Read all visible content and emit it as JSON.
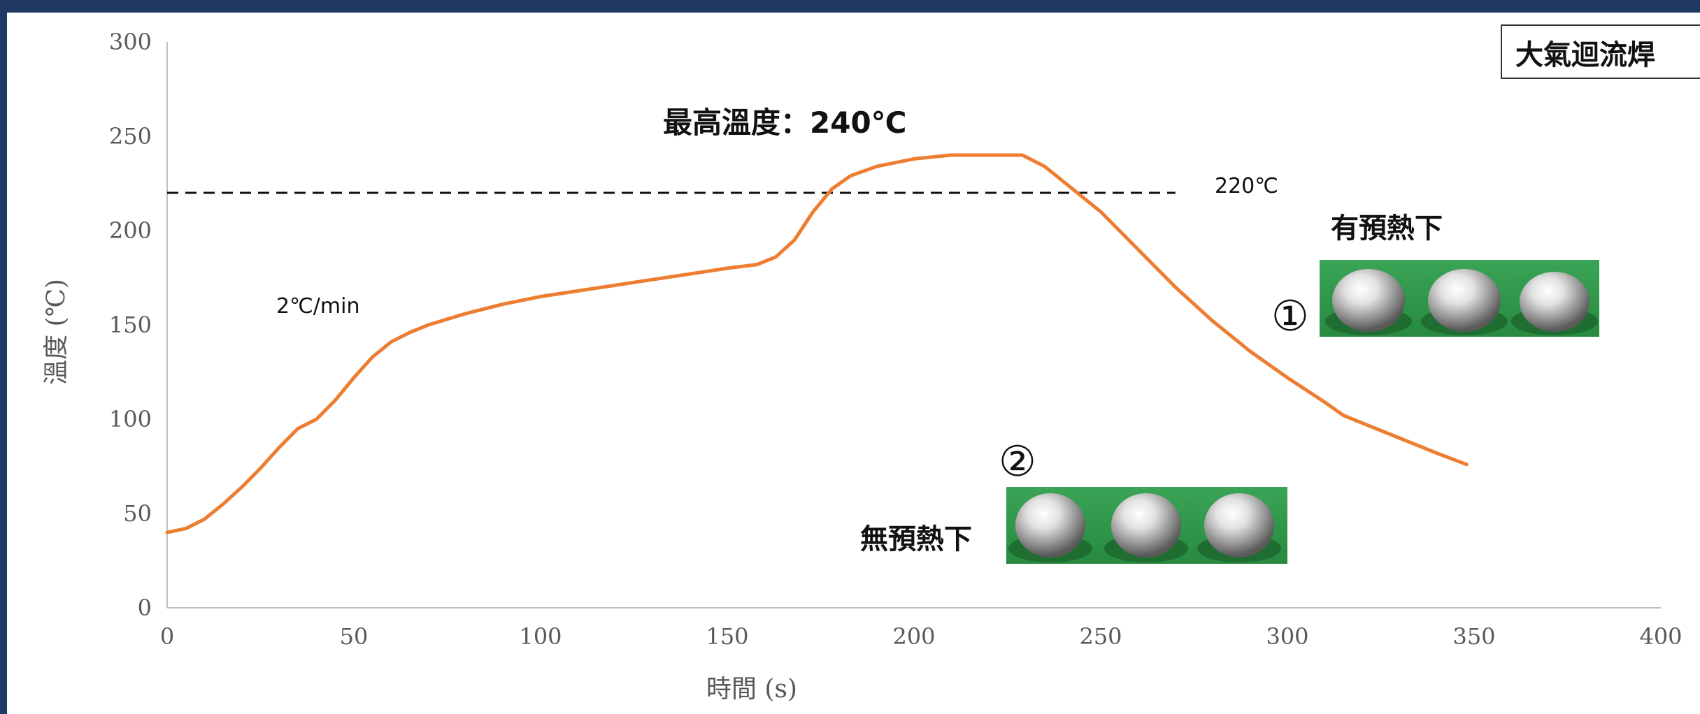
{
  "chart_data": {
    "type": "line",
    "title": "大氣迴流焊",
    "xlabel": "時間 (s)",
    "ylabel": "溫度 (℃)",
    "xlim": [
      0,
      400
    ],
    "ylim": [
      0,
      300
    ],
    "x_ticks": [
      0,
      50,
      100,
      150,
      200,
      250,
      300,
      350,
      400
    ],
    "y_ticks": [
      0,
      50,
      100,
      150,
      200,
      250,
      300
    ],
    "grid": false,
    "series": [
      {
        "color": "#ed7d31",
        "x": [
          0,
          5,
          10,
          15,
          20,
          25,
          30,
          35,
          40,
          45,
          50,
          55,
          60,
          65,
          70,
          75,
          80,
          90,
          100,
          110,
          120,
          130,
          140,
          150,
          158,
          163,
          168,
          173,
          178,
          183,
          190,
          200,
          210,
          220,
          229,
          235,
          240,
          245,
          250,
          260,
          270,
          280,
          290,
          300,
          310,
          315,
          320,
          330,
          340,
          348
        ],
        "y": [
          40,
          42,
          47,
          55,
          64,
          74,
          85,
          95,
          100,
          110,
          122,
          133,
          141,
          146,
          150,
          153,
          156,
          161,
          165,
          168,
          171,
          174,
          177,
          180,
          182,
          186,
          195,
          210,
          222,
          229,
          234,
          238,
          240,
          240,
          240,
          234,
          226,
          218,
          210,
          190,
          170,
          152,
          136,
          122,
          109,
          102,
          98,
          90,
          82,
          76
        ]
      }
    ],
    "reference_line": {
      "y": 220,
      "label": "220℃",
      "x_end": 270
    },
    "annotations": {
      "peak": "最高溫度：240℃",
      "rate": "2℃/min",
      "label_1": "有預熱下",
      "marker_1": "①",
      "label_2": "無預熱下",
      "marker_2": "②"
    }
  },
  "colors": {
    "frame": "#1f3864",
    "curve": "#ed7d31",
    "label_1": "#ed7d31",
    "label_2": "#4472c4",
    "pcb": "#2e9a47"
  }
}
